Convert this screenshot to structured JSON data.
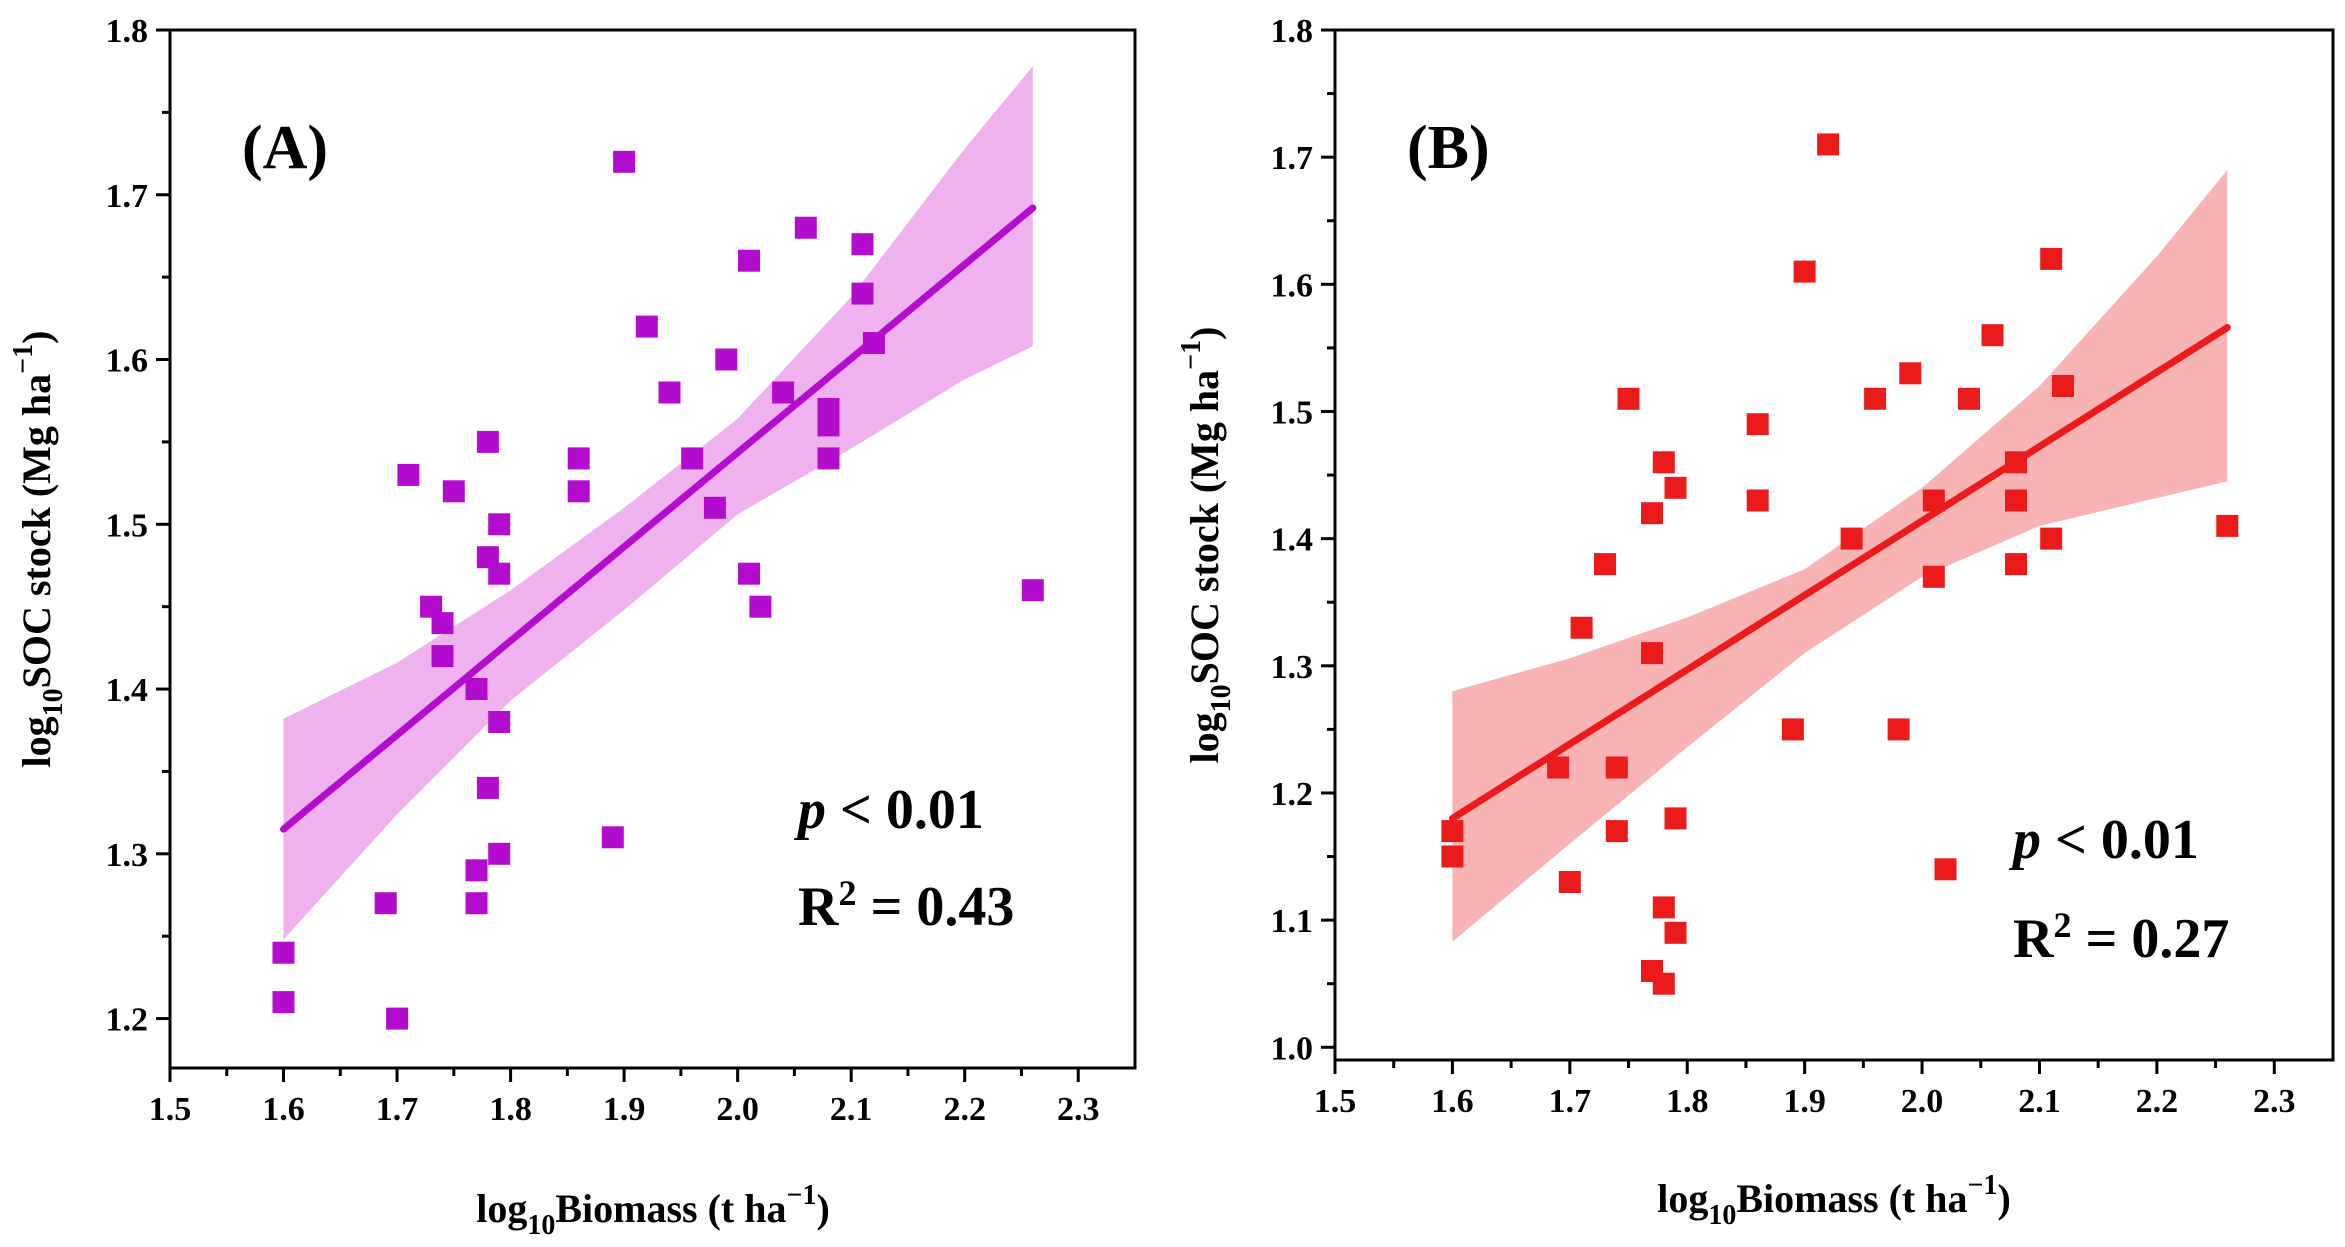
{
  "chart_data": [
    {
      "type": "scatter",
      "panel_label": "(A)",
      "xlabel": {
        "prefix": "log",
        "sub": "10",
        "main": "Biomass (t ha",
        "sup": "−1",
        "suffix": ")"
      },
      "ylabel": {
        "prefix": "log",
        "sub": "10",
        "main": "SOC stock (Mg ha",
        "sup": "−1",
        "suffix": ")"
      },
      "xlim": [
        1.5,
        2.35
      ],
      "ylim": [
        1.17,
        1.8
      ],
      "xticks": [
        1.5,
        1.6,
        1.7,
        1.8,
        1.9,
        2.0,
        2.1,
        2.2,
        2.3
      ],
      "xtick_labels": [
        "1.5",
        "1.6",
        "1.7",
        "1.8",
        "1.9",
        "2.0",
        "2.1",
        "2.2",
        "2.3"
      ],
      "yticks": [
        1.2,
        1.3,
        1.4,
        1.5,
        1.6,
        1.7,
        1.8
      ],
      "ytick_labels": [
        "1.2",
        "1.3",
        "1.4",
        "1.5",
        "1.6",
        "1.7",
        "1.8"
      ],
      "color": "#b40ccf",
      "band_color": "#efb2ef",
      "fit": {
        "x": [
          1.6,
          2.26
        ],
        "y": [
          1.315,
          1.692
        ]
      },
      "band_upper": [
        [
          1.6,
          1.382
        ],
        [
          1.7,
          1.416
        ],
        [
          1.8,
          1.46
        ],
        [
          1.9,
          1.51
        ],
        [
          2.0,
          1.564
        ],
        [
          2.1,
          1.638
        ],
        [
          2.2,
          1.728
        ],
        [
          2.26,
          1.778
        ]
      ],
      "band_lower": [
        [
          1.6,
          1.248
        ],
        [
          1.7,
          1.324
        ],
        [
          1.8,
          1.393
        ],
        [
          1.9,
          1.448
        ],
        [
          2.0,
          1.506
        ],
        [
          2.1,
          1.546
        ],
        [
          2.2,
          1.588
        ],
        [
          2.26,
          1.608
        ]
      ],
      "stats": {
        "p_symbol": "p",
        "p_rest": " < 0.01",
        "r2_prefix": "R",
        "r2_sup": "2",
        "r2_rest": " = 0.43"
      },
      "points": [
        [
          1.6,
          1.24
        ],
        [
          1.6,
          1.21
        ],
        [
          1.69,
          1.27
        ],
        [
          1.7,
          1.2
        ],
        [
          1.71,
          1.53
        ],
        [
          1.73,
          1.45
        ],
        [
          1.74,
          1.44
        ],
        [
          1.74,
          1.42
        ],
        [
          1.75,
          1.52
        ],
        [
          1.77,
          1.4
        ],
        [
          1.77,
          1.29
        ],
        [
          1.77,
          1.27
        ],
        [
          1.78,
          1.55
        ],
        [
          1.78,
          1.48
        ],
        [
          1.78,
          1.34
        ],
        [
          1.79,
          1.5
        ],
        [
          1.79,
          1.47
        ],
        [
          1.79,
          1.38
        ],
        [
          1.79,
          1.3
        ],
        [
          1.86,
          1.54
        ],
        [
          1.86,
          1.52
        ],
        [
          1.89,
          1.31
        ],
        [
          1.9,
          1.72
        ],
        [
          1.92,
          1.62
        ],
        [
          1.94,
          1.58
        ],
        [
          1.96,
          1.54
        ],
        [
          1.98,
          1.51
        ],
        [
          1.99,
          1.6
        ],
        [
          2.01,
          1.66
        ],
        [
          2.01,
          1.47
        ],
        [
          2.02,
          1.45
        ],
        [
          2.04,
          1.58
        ],
        [
          2.06,
          1.68
        ],
        [
          2.08,
          1.57
        ],
        [
          2.08,
          1.56
        ],
        [
          2.08,
          1.54
        ],
        [
          2.11,
          1.67
        ],
        [
          2.11,
          1.64
        ],
        [
          2.12,
          1.61
        ],
        [
          2.26,
          1.46
        ]
      ]
    },
    {
      "type": "scatter",
      "panel_label": "(B)",
      "xlabel": {
        "prefix": "log",
        "sub": "10",
        "main": "Biomass (t ha",
        "sup": "−1",
        "suffix": ")"
      },
      "ylabel": {
        "prefix": "log",
        "sub": "10",
        "main": "SOC stock (Mg ha",
        "sup": "−1",
        "suffix": ")"
      },
      "xlim": [
        1.5,
        2.35
      ],
      "ylim": [
        0.99,
        1.8
      ],
      "xticks": [
        1.5,
        1.6,
        1.7,
        1.8,
        1.9,
        2.0,
        2.1,
        2.2,
        2.3
      ],
      "xtick_labels": [
        "1.5",
        "1.6",
        "1.7",
        "1.8",
        "1.9",
        "2.0",
        "2.1",
        "2.2",
        "2.3"
      ],
      "yticks": [
        1.0,
        1.1,
        1.2,
        1.3,
        1.4,
        1.5,
        1.6,
        1.7,
        1.8
      ],
      "ytick_labels": [
        "1.0",
        "1.1",
        "1.2",
        "1.3",
        "1.4",
        "1.5",
        "1.6",
        "1.7",
        "1.8"
      ],
      "color": "#ec1b1b",
      "band_color": "#f8b4b4",
      "fit": {
        "x": [
          1.6,
          2.26
        ],
        "y": [
          1.18,
          1.566
        ]
      },
      "band_upper": [
        [
          1.6,
          1.28
        ],
        [
          1.7,
          1.306
        ],
        [
          1.8,
          1.338
        ],
        [
          1.9,
          1.376
        ],
        [
          2.0,
          1.44
        ],
        [
          2.1,
          1.52
        ],
        [
          2.2,
          1.622
        ],
        [
          2.26,
          1.69
        ]
      ],
      "band_lower": [
        [
          1.6,
          1.083
        ],
        [
          1.7,
          1.16
        ],
        [
          1.8,
          1.236
        ],
        [
          1.9,
          1.31
        ],
        [
          2.0,
          1.37
        ],
        [
          2.1,
          1.41
        ],
        [
          2.2,
          1.432
        ],
        [
          2.26,
          1.445
        ]
      ],
      "stats": {
        "p_symbol": "p",
        "p_rest": " < 0.01",
        "r2_prefix": "R",
        "r2_sup": "2",
        "r2_rest": " = 0.27"
      },
      "points": [
        [
          1.6,
          1.17
        ],
        [
          1.6,
          1.15
        ],
        [
          1.69,
          1.22
        ],
        [
          1.7,
          1.13
        ],
        [
          1.71,
          1.33
        ],
        [
          1.73,
          1.38
        ],
        [
          1.74,
          1.22
        ],
        [
          1.74,
          1.17
        ],
        [
          1.75,
          1.51
        ],
        [
          1.77,
          1.42
        ],
        [
          1.77,
          1.31
        ],
        [
          1.77,
          1.06
        ],
        [
          1.78,
          1.46
        ],
        [
          1.78,
          1.11
        ],
        [
          1.78,
          1.05
        ],
        [
          1.79,
          1.44
        ],
        [
          1.79,
          1.18
        ],
        [
          1.79,
          1.09
        ],
        [
          1.86,
          1.49
        ],
        [
          1.86,
          1.43
        ],
        [
          1.89,
          1.25
        ],
        [
          1.9,
          1.61
        ],
        [
          1.92,
          1.71
        ],
        [
          1.94,
          1.4
        ],
        [
          1.96,
          1.51
        ],
        [
          1.98,
          1.25
        ],
        [
          1.99,
          1.53
        ],
        [
          2.01,
          1.43
        ],
        [
          2.01,
          1.37
        ],
        [
          2.02,
          1.14
        ],
        [
          2.04,
          1.51
        ],
        [
          2.06,
          1.56
        ],
        [
          2.08,
          1.46
        ],
        [
          2.08,
          1.43
        ],
        [
          2.08,
          1.38
        ],
        [
          2.11,
          1.62
        ],
        [
          2.11,
          1.4
        ],
        [
          2.12,
          1.52
        ],
        [
          2.26,
          1.41
        ]
      ]
    }
  ]
}
